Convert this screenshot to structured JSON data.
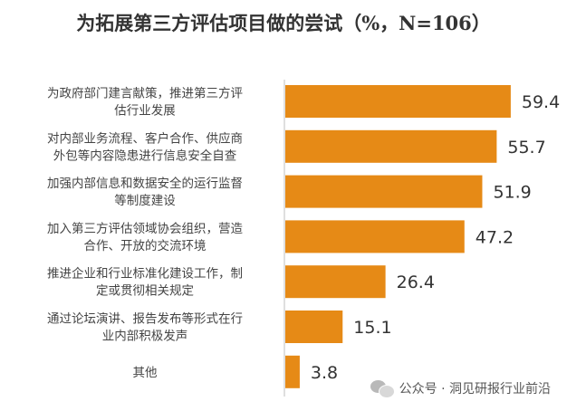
{
  "chart_data": {
    "type": "bar",
    "orientation": "horizontal",
    "title": "为拓展第三方评估项目做的尝试（%，N=106）",
    "categories": [
      [
        "为政府部门建言献策，推进第三方评",
        "估行业发展"
      ],
      [
        "对内部业务流程、客户合作、供应商",
        "外包等内容隐患进行信息安全自查"
      ],
      [
        "加强内部信息和数据安全的运行监督",
        "等制度建设"
      ],
      [
        "加入第三方评估领域协会组织，营造",
        "合作、开放的交流环境"
      ],
      [
        "推进企业和行业标准化建设工作，制",
        "定或贯彻相关规定"
      ],
      [
        "通过论坛演讲、报告发布等形式在行",
        "业内部积极发声"
      ],
      [
        "其他"
      ]
    ],
    "values": [
      59.4,
      55.7,
      51.9,
      47.2,
      26.4,
      15.1,
      3.8
    ],
    "value_labels": [
      "59.4",
      "55.7",
      "51.9",
      "47.2",
      "26.4",
      "15.1",
      "3.8"
    ],
    "xlabel": "",
    "ylabel": "",
    "xlim": [
      0,
      100
    ],
    "grid": false,
    "legend": "none",
    "bar_color": "#E68A16",
    "axis_color": "#BFBFBF"
  },
  "watermark": {
    "text": "公众号 · 洞见研报行业前沿",
    "icon": "wechat-icon"
  }
}
